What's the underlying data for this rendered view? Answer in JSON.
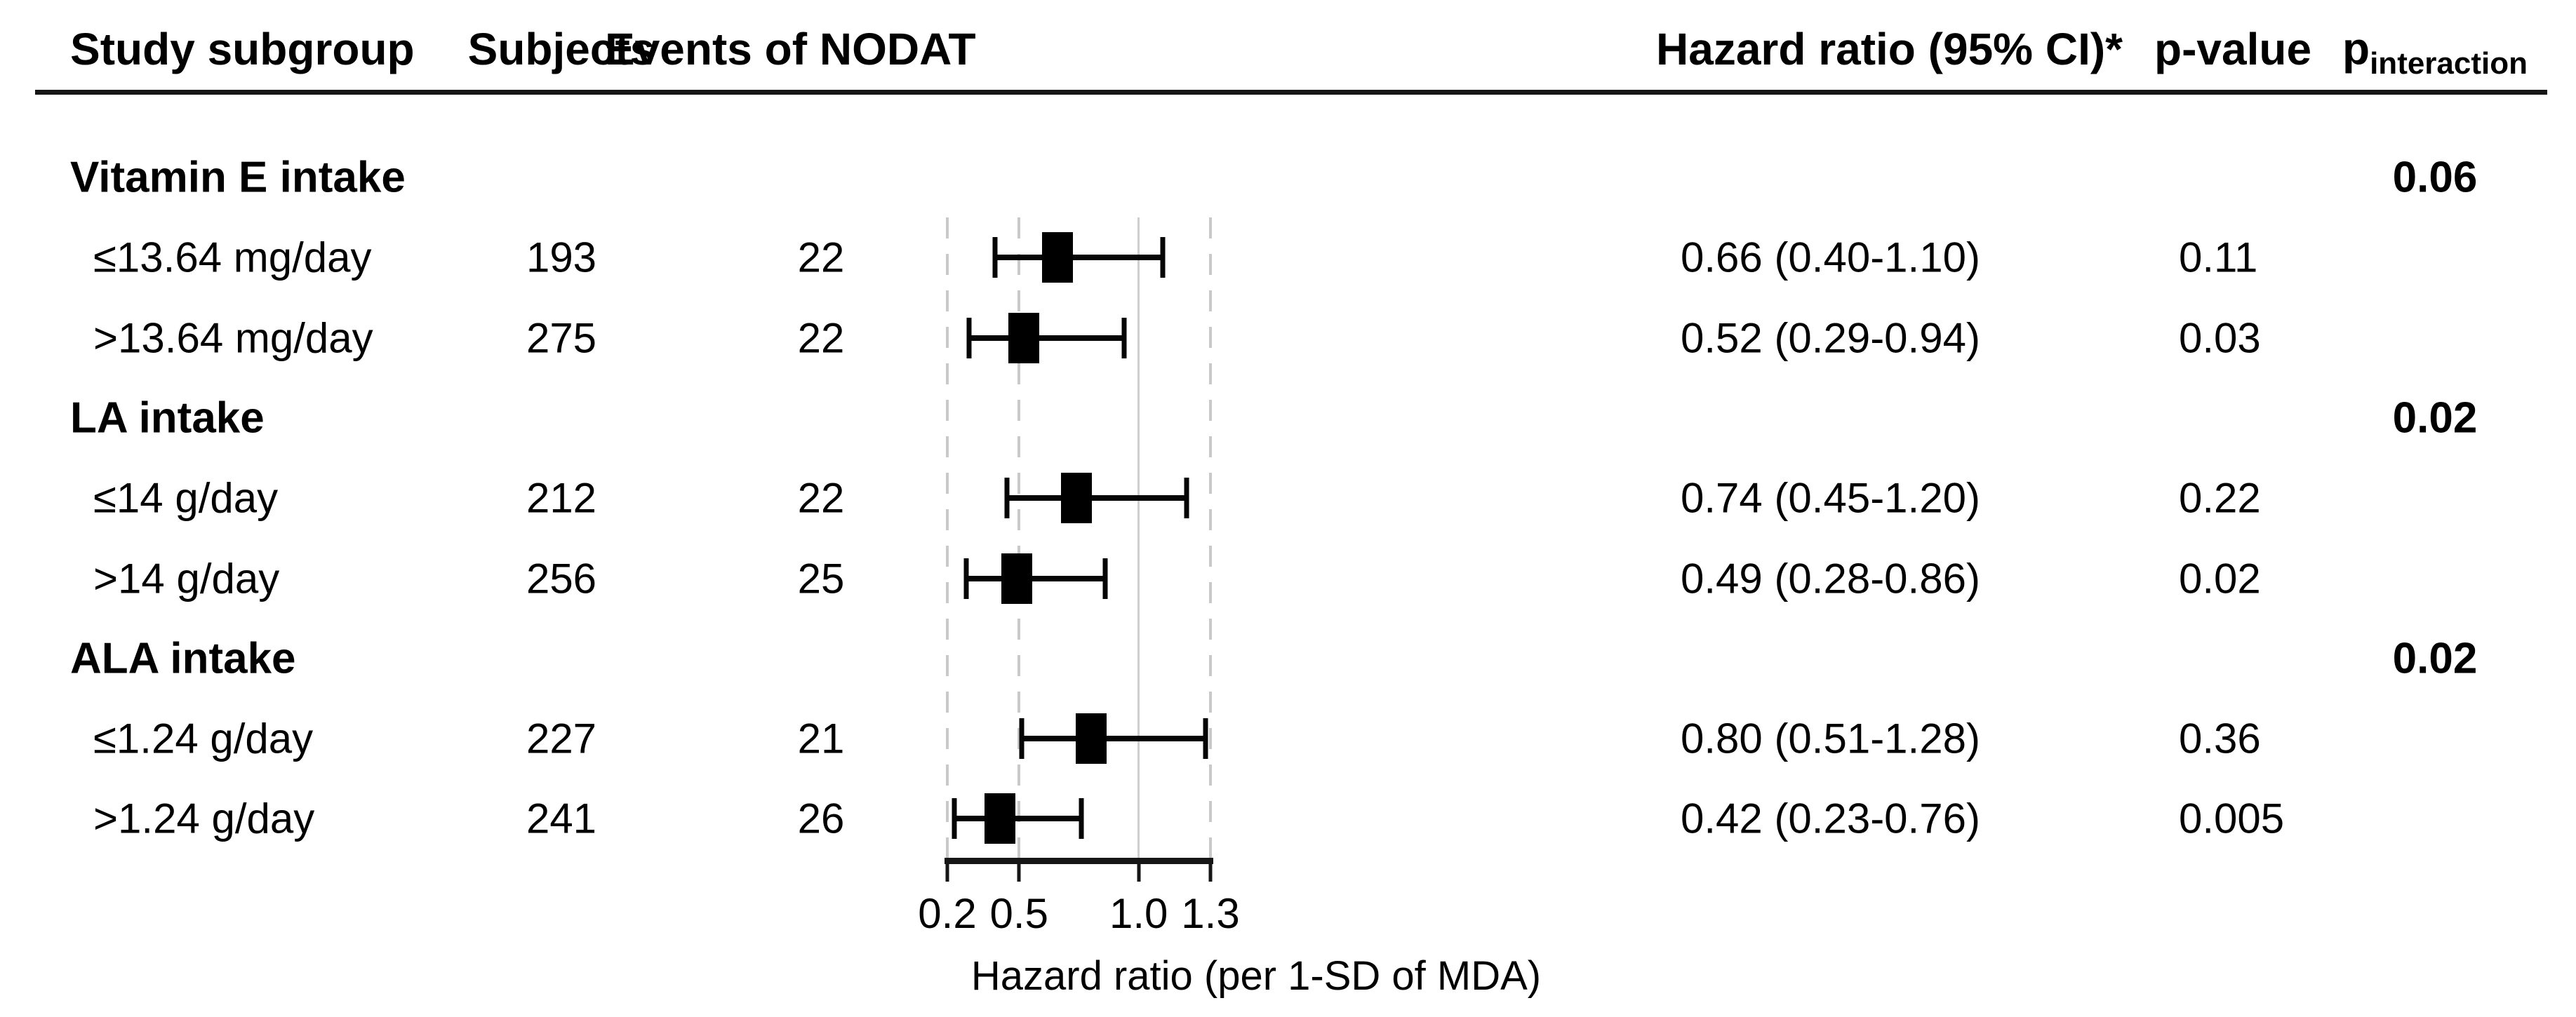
{
  "figure": {
    "columns": {
      "study_subgroup": "Study subgroup",
      "subjects": "Subjects",
      "events": "Events of NODAT",
      "hazard_ratio": "Hazard ratio (95% CI)*",
      "p_value": "p-value",
      "p_interaction_main": "p",
      "p_interaction_sub": "interaction"
    }
  },
  "chart_data": {
    "type": "forest",
    "title": "",
    "x_axis": {
      "label": "Hazard ratio (per 1-SD of MDA)",
      "scale": "linear",
      "min": 0.2,
      "max": 1.3,
      "ticks": [
        0.2,
        0.5,
        1.0,
        1.3
      ],
      "tick_labels": [
        "0.2",
        "0.5",
        "1.0",
        "1.3"
      ],
      "gridlines": [
        {
          "x": 0.2,
          "style": "dashed"
        },
        {
          "x": 0.5,
          "style": "dashed"
        },
        {
          "x": 1.0,
          "style": "solid"
        },
        {
          "x": 1.3,
          "style": "dashed"
        }
      ],
      "reference_line": 1.0
    },
    "rows": [
      {
        "type": "group",
        "label": "Vitamin E intake",
        "p_interaction": "0.06"
      },
      {
        "type": "item",
        "label": "≤13.64 mg/day",
        "subjects": "193",
        "events": "22",
        "hr": 0.66,
        "ci_low": 0.4,
        "ci_high": 1.1,
        "hr_ci_text": "0.66 (0.40-1.10)",
        "p_value": "0.11"
      },
      {
        "type": "item",
        "label": ">13.64 mg/day",
        "subjects": "275",
        "events": "22",
        "hr": 0.52,
        "ci_low": 0.29,
        "ci_high": 0.94,
        "hr_ci_text": "0.52 (0.29-0.94)",
        "p_value": "0.03"
      },
      {
        "type": "group",
        "label": "LA intake",
        "p_interaction": "0.02"
      },
      {
        "type": "item",
        "label": "≤14 g/day",
        "subjects": "212",
        "events": "22",
        "hr": 0.74,
        "ci_low": 0.45,
        "ci_high": 1.2,
        "hr_ci_text": "0.74 (0.45-1.20)",
        "p_value": "0.22"
      },
      {
        "type": "item",
        "label": ">14 g/day",
        "subjects": "256",
        "events": "25",
        "hr": 0.49,
        "ci_low": 0.28,
        "ci_high": 0.86,
        "hr_ci_text": "0.49 (0.28-0.86)",
        "p_value": "0.02"
      },
      {
        "type": "group",
        "label": "ALA intake",
        "p_interaction": "0.02"
      },
      {
        "type": "item",
        "label": "≤1.24 g/day",
        "subjects": "227",
        "events": "21",
        "hr": 0.8,
        "ci_low": 0.51,
        "ci_high": 1.28,
        "hr_ci_text": "0.80 (0.51-1.28)",
        "p_value": "0.36"
      },
      {
        "type": "item",
        "label": ">1.24 g/day",
        "subjects": "241",
        "events": "26",
        "hr": 0.42,
        "ci_low": 0.23,
        "ci_high": 0.76,
        "hr_ci_text": "0.42 (0.23-0.76)",
        "p_value": "0.005"
      }
    ],
    "colors": {
      "marker": "#000000",
      "ci_bar": "#050505",
      "grid_dashed": "#c9c9c9",
      "grid_solid": "#cfcfcf",
      "axis": "#161616"
    },
    "legend": null,
    "grid": "vertical-only"
  }
}
